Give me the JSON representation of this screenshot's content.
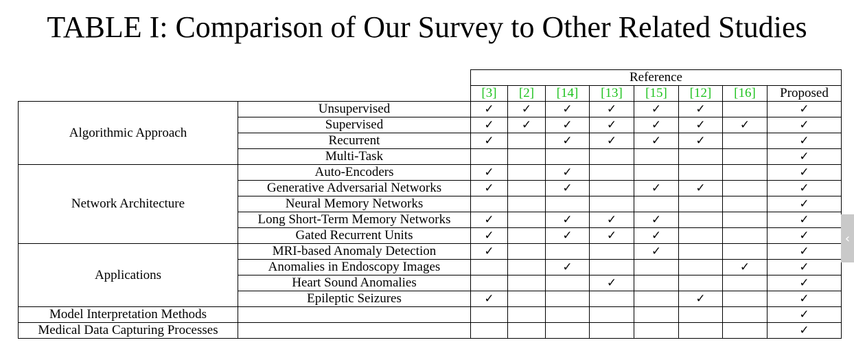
{
  "title": "TABLE I: Comparison of Our Survey to Other Related Studies",
  "reference_label": "Reference",
  "check_glyph": "✓",
  "references": [
    {
      "label": "[3]",
      "cite": true
    },
    {
      "label": "[2]",
      "cite": true
    },
    {
      "label": "[14]",
      "cite": true
    },
    {
      "label": "[13]",
      "cite": true
    },
    {
      "label": "[15]",
      "cite": true
    },
    {
      "label": "[12]",
      "cite": true
    },
    {
      "label": "[16]",
      "cite": true
    },
    {
      "label": "Proposed",
      "cite": false
    }
  ],
  "cite_color": "#1fc21f",
  "groups": [
    {
      "name": "Algorithmic Approach",
      "rows": [
        {
          "label": "Unsupervised",
          "checks": [
            1,
            1,
            1,
            1,
            1,
            1,
            0,
            1
          ]
        },
        {
          "label": "Supervised",
          "checks": [
            1,
            1,
            1,
            1,
            1,
            1,
            1,
            1
          ]
        },
        {
          "label": "Recurrent",
          "checks": [
            1,
            0,
            1,
            1,
            1,
            1,
            0,
            1
          ]
        },
        {
          "label": "Multi-Task",
          "checks": [
            0,
            0,
            0,
            0,
            0,
            0,
            0,
            1
          ]
        }
      ]
    },
    {
      "name": "Network Architecture",
      "rows": [
        {
          "label": "Auto-Encoders",
          "checks": [
            1,
            0,
            1,
            0,
            0,
            0,
            0,
            1
          ]
        },
        {
          "label": "Generative Adversarial Networks",
          "checks": [
            1,
            0,
            1,
            0,
            1,
            1,
            0,
            1
          ]
        },
        {
          "label": "Neural Memory Networks",
          "checks": [
            0,
            0,
            0,
            0,
            0,
            0,
            0,
            1
          ]
        },
        {
          "label": "Long Short-Term Memory Networks",
          "checks": [
            1,
            0,
            1,
            1,
            1,
            0,
            0,
            1
          ]
        },
        {
          "label": "Gated Recurrent Units",
          "checks": [
            1,
            0,
            1,
            1,
            1,
            0,
            0,
            1
          ]
        }
      ]
    },
    {
      "name": "Applications",
      "rows": [
        {
          "label": "MRI-based Anomaly Detection",
          "checks": [
            1,
            0,
            0,
            0,
            1,
            0,
            0,
            1
          ]
        },
        {
          "label": "Anomalies in Endoscopy Images",
          "checks": [
            0,
            0,
            1,
            0,
            0,
            0,
            1,
            1
          ]
        },
        {
          "label": "Heart Sound Anomalies",
          "checks": [
            0,
            0,
            0,
            1,
            0,
            0,
            0,
            1
          ]
        },
        {
          "label": "Epileptic Seizures",
          "checks": [
            1,
            0,
            0,
            0,
            0,
            1,
            0,
            1
          ]
        }
      ]
    }
  ],
  "single_rows": [
    {
      "label": "Model Interpretation Methods",
      "checks": [
        0,
        0,
        0,
        0,
        0,
        0,
        0,
        1
      ]
    },
    {
      "label": "Medical Data Capturing Processes",
      "checks": [
        0,
        0,
        0,
        0,
        0,
        0,
        0,
        1
      ]
    }
  ],
  "side_tab_glyph": "‹"
}
